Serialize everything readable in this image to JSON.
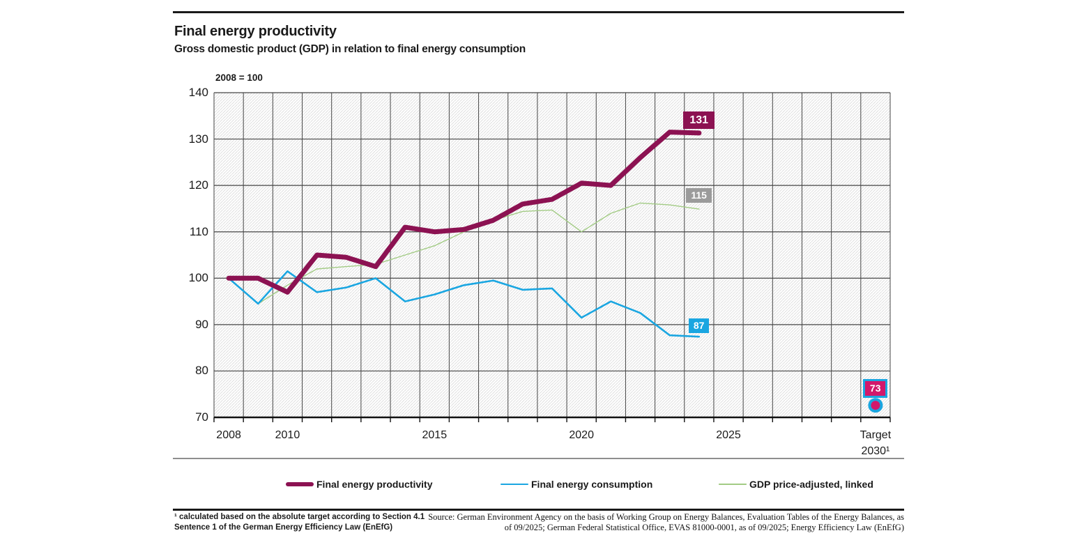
{
  "header": {
    "title": "Final energy productivity",
    "subtitle": "Gross domestic product (GDP) in relation to final energy consumption"
  },
  "chart_data": {
    "type": "line",
    "unit_label": "2008 = 100",
    "x_domain": [
      2008,
      2030
    ],
    "ylim": [
      70,
      140
    ],
    "y_ticks": [
      140,
      130,
      120,
      110,
      100,
      90,
      80,
      70
    ],
    "x_ticks": [
      {
        "year": 2008,
        "label": "2008"
      },
      {
        "year": 2010,
        "label": "2010"
      },
      {
        "year": 2015,
        "label": "2015"
      },
      {
        "year": 2020,
        "label": "2020"
      },
      {
        "year": 2025,
        "label": "2025"
      },
      {
        "year": 2030,
        "label": "Target",
        "label2": "2030¹"
      }
    ],
    "x": [
      2008,
      2009,
      2010,
      2011,
      2012,
      2013,
      2014,
      2015,
      2016,
      2017,
      2018,
      2019,
      2020,
      2021,
      2022,
      2023,
      2024
    ],
    "series": [
      {
        "name": "GDP price-adjusted, linked",
        "color": "#a2cb84",
        "width": 1.4,
        "values": [
          100,
          94.5,
          98.5,
          102,
          102.5,
          103,
          105,
          107,
          110,
          112.5,
          114.4,
          114.7,
          110,
          114,
          116.2,
          115.8,
          114.9
        ]
      },
      {
        "name": "Final energy consumption",
        "color": "#1aa6e1",
        "width": 2.6,
        "values": [
          100,
          94.5,
          101.5,
          97,
          98,
          100,
          95,
          96.5,
          98.5,
          99.5,
          97.5,
          97.8,
          91.5,
          95,
          92.5,
          87.7,
          87.4
        ]
      },
      {
        "name": "Final energy productivity",
        "color": "#8c1252",
        "width": 7,
        "values": [
          100,
          100,
          97,
          105,
          104.5,
          102.5,
          111,
          110,
          110.5,
          112.5,
          116,
          117,
          120.5,
          120,
          126,
          131.5,
          131.3
        ]
      }
    ],
    "target": {
      "year": 2030,
      "value": 72.6,
      "label": "73",
      "fill": "#d2186b",
      "ring": "#1aa6e1"
    },
    "end_labels": [
      {
        "text": "131",
        "year": 2024,
        "value": 131,
        "bg": "#8c1252",
        "big": true
      },
      {
        "text": "115",
        "year": 2024,
        "value": 115,
        "bg": "#9b9b9b"
      },
      {
        "text": "87",
        "year": 2024,
        "value": 87,
        "bg": "#1aa6e1"
      },
      {
        "text": "73",
        "year": 2030,
        "value": 73,
        "bg": "#d2186b",
        "border": "#1aa6e1"
      }
    ],
    "grid_color": "#464646",
    "axis_color": "#111111",
    "hatch_color": "#d8d8d8",
    "legend_position": "bottom",
    "grid": true
  },
  "legend": {
    "items": [
      {
        "label": "Final energy productivity",
        "color": "#8c1252",
        "thickness": 6,
        "x": 410
      },
      {
        "label": "Final energy consumption",
        "color": "#1aa6e1",
        "thickness": 2.6,
        "x": 718
      },
      {
        "label": "GDP price-adjusted, linked",
        "color": "#a2cb84",
        "thickness": 1.4,
        "x": 1031
      }
    ]
  },
  "footer": {
    "footnote_line1": "¹ calculated based on the absolute target according to Section 4.1",
    "footnote_line2": "Sentence 1 of the German Energy Efficiency Law (EnEfG)",
    "source_line1": "Source: German Environment Agency on the basis of Working Group on Energy Balances, Evaluation Tables of the Energy Balances, as",
    "source_line2": "of 09/2025; German Federal Statistical Office, EVAS 81000-0001, as of 09/2025; Energy Efficiency Law (EnEfG)"
  }
}
